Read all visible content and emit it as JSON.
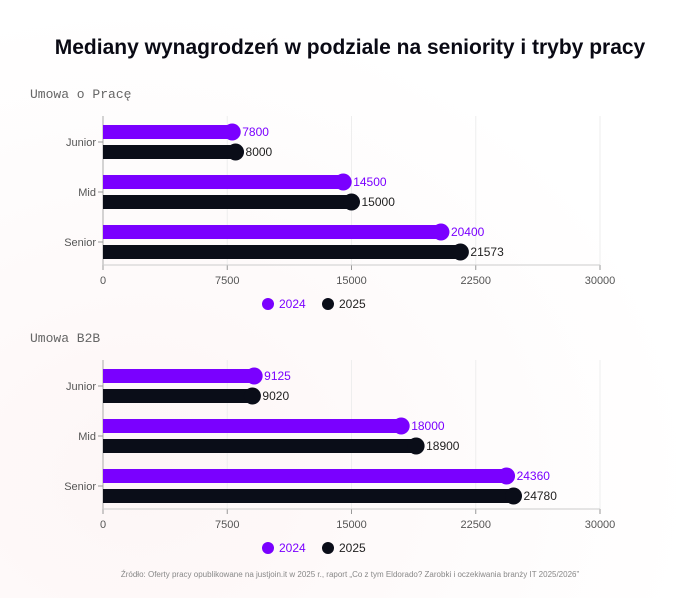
{
  "title": "Mediany wynagrodzeń w podziale na seniority i tryby pracy",
  "source": "Źródło: Oferty pracy opublikowane na justjoin.it w 2025 r., raport „Co z tym Eldorado? Zarobki i oczekiwania branży IT 2025/2026”",
  "colors": {
    "2024": "#7a00ff",
    "2025": "#0a0d18"
  },
  "chart_data": [
    {
      "type": "bar",
      "orientation": "horizontal",
      "title": "Umowa o Pracę",
      "categories": [
        "Junior",
        "Mid",
        "Senior"
      ],
      "xlim": [
        0,
        30000
      ],
      "xticks": [
        "0",
        "7500",
        "15000",
        "22500",
        "30000"
      ],
      "grid": true,
      "legend": "bottom",
      "series": [
        {
          "name": "2024",
          "values": [
            7800,
            14500,
            20400
          ]
        },
        {
          "name": "2025",
          "values": [
            8000,
            15000,
            21573
          ]
        }
      ]
    },
    {
      "type": "bar",
      "orientation": "horizontal",
      "title": "Umowa B2B",
      "categories": [
        "Junior",
        "Mid",
        "Senior"
      ],
      "xlim": [
        0,
        30000
      ],
      "xticks": [
        "0",
        "7500",
        "15000",
        "22500",
        "30000"
      ],
      "grid": true,
      "legend": "bottom",
      "series": [
        {
          "name": "2024",
          "values": [
            9125,
            18000,
            24360
          ]
        },
        {
          "name": "2025",
          "values": [
            9020,
            18900,
            24780
          ]
        }
      ]
    }
  ]
}
